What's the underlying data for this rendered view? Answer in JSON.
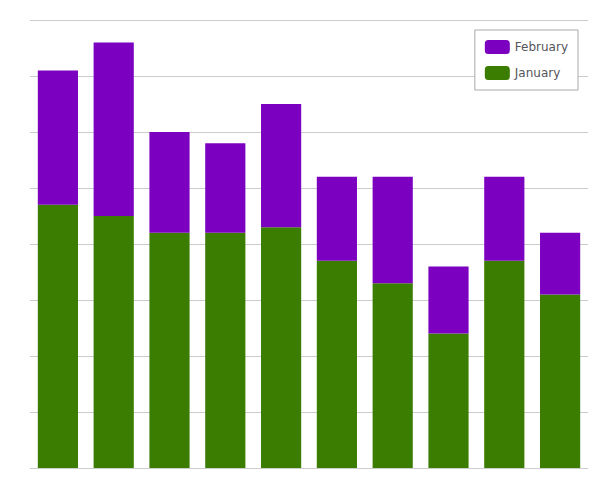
{
  "chart_data": {
    "type": "bar",
    "stacked": true,
    "categories": [
      null,
      null,
      null,
      null,
      null,
      null,
      null,
      null,
      null,
      null
    ],
    "series": [
      {
        "name": "January",
        "color": "#3a7d00",
        "values": [
          235,
          225,
          210,
          210,
          215,
          185,
          165,
          120,
          185,
          155
        ]
      },
      {
        "name": "February",
        "color": "#7b00c0",
        "values": [
          120,
          155,
          90,
          80,
          110,
          75,
          95,
          60,
          75,
          55
        ]
      }
    ],
    "ylim": [
      0,
      400
    ],
    "yticks": [
      0,
      50,
      100,
      150,
      200,
      250,
      300,
      350,
      400
    ],
    "grid": true,
    "legend": "upper right",
    "tick_labels": false
  }
}
